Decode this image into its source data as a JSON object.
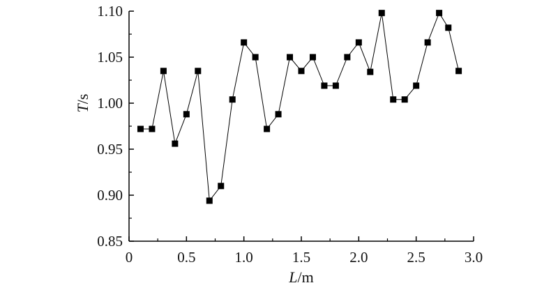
{
  "chart_data": {
    "type": "line",
    "title": "",
    "xlabel": {
      "var": "L",
      "unit": "/m"
    },
    "ylabel": {
      "var": "T",
      "unit": "/s"
    },
    "xlim": [
      0,
      3.0
    ],
    "ylim": [
      0.85,
      1.1
    ],
    "x_ticks": [
      0,
      0.5,
      1.0,
      1.5,
      2.0,
      2.5,
      3.0
    ],
    "x_tick_labels": [
      "0",
      "0.5",
      "1.0",
      "1.5",
      "2.0",
      "2.5",
      "3.0"
    ],
    "y_ticks": [
      0.85,
      0.9,
      0.95,
      1.0,
      1.05,
      1.1
    ],
    "y_tick_labels": [
      "0.85",
      "0.90",
      "0.95",
      "1.00",
      "1.05",
      "1.10"
    ],
    "grid": false,
    "marker": "square",
    "color": "#000000",
    "series": [
      {
        "x": [
          0.1,
          0.2,
          0.3,
          0.4,
          0.5,
          0.6,
          0.7,
          0.8,
          0.9,
          1.0,
          1.1,
          1.2,
          1.3,
          1.4,
          1.5,
          1.6,
          1.7,
          1.8,
          1.9,
          2.0,
          2.1,
          2.2,
          2.3,
          2.4,
          2.5,
          2.6,
          2.7,
          2.78,
          2.87
        ],
        "y": [
          0.972,
          0.972,
          1.035,
          0.956,
          0.988,
          1.035,
          0.894,
          0.91,
          1.004,
          1.066,
          1.05,
          0.972,
          0.988,
          1.05,
          1.035,
          1.05,
          1.019,
          1.019,
          1.05,
          1.066,
          1.034,
          1.098,
          1.004,
          1.004,
          1.019,
          1.066,
          1.098,
          1.082,
          1.035
        ]
      }
    ]
  }
}
